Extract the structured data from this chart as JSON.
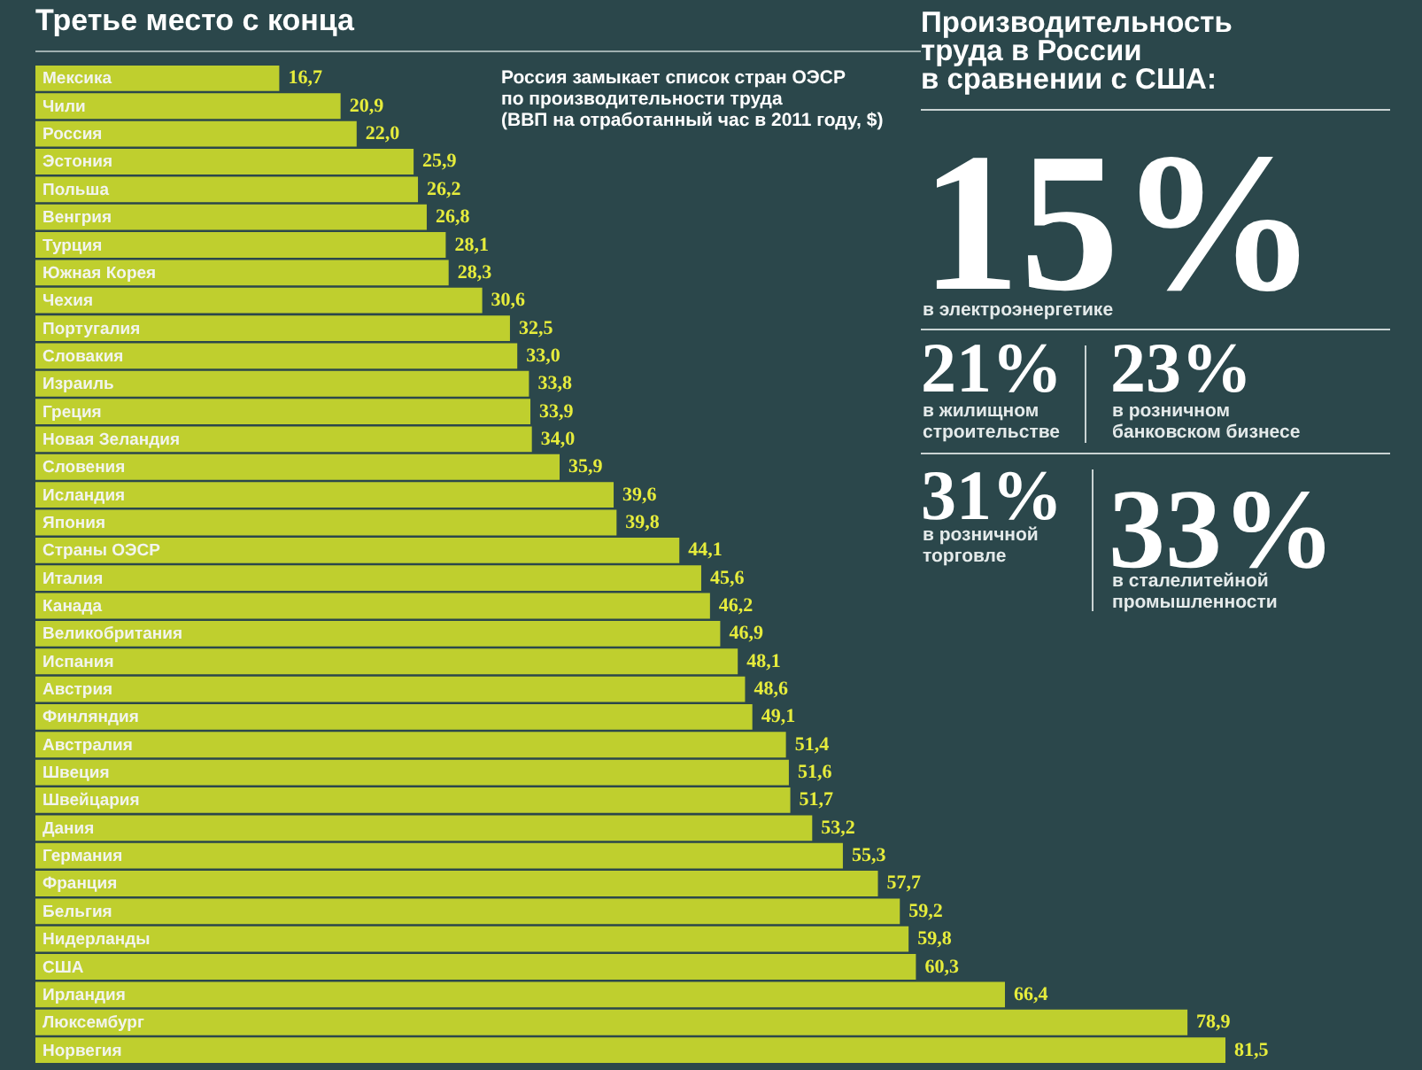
{
  "chart_data": [
    {
      "type": "bar",
      "orientation": "horizontal",
      "title": "Третье место с конца",
      "subtitle": "Россия замыкает список стран ОЭСР\nпо производительности труда\n(ВВП на отработанный час в 2011 году, $)",
      "categories": [
        "Мексика",
        "Чили",
        "Россия",
        "Эстония",
        "Польша",
        "Венгрия",
        "Турция",
        "Южная Корея",
        "Чехия",
        "Португалия",
        "Словакия",
        "Израиль",
        "Греция",
        "Новая Зеландия",
        "Словения",
        "Исландия",
        "Япония",
        "Страны ОЭСР",
        "Италия",
        "Канада",
        "Великобритания",
        "Испания",
        "Австрия",
        "Финляндия",
        "Австралия",
        "Швеция",
        "Швейцария",
        "Дания",
        "Германия",
        "Франция",
        "Бельгия",
        "Нидерланды",
        "США",
        "Ирландия",
        "Люксембург",
        "Норвегия"
      ],
      "series": [
        {
          "color": "#bfcf2e",
          "values": [
            16.7,
            20.9,
            22.0,
            25.9,
            26.2,
            26.8,
            28.1,
            28.3,
            30.6,
            32.5,
            33.0,
            33.8,
            33.9,
            34.0,
            35.9,
            39.6,
            39.8,
            44.1,
            45.6,
            46.2,
            46.9,
            48.1,
            48.6,
            49.1,
            51.4,
            51.6,
            51.7,
            53.2,
            55.3,
            57.7,
            59.2,
            59.8,
            60.3,
            66.4,
            78.9,
            81.5
          ],
          "value_labels": [
            "16,7",
            "20,9",
            "22,0",
            "25,9",
            "26,2",
            "26,8",
            "28,1",
            "28,3",
            "30,6",
            "32,5",
            "33,0",
            "33,8",
            "33,9",
            "34,0",
            "35,9",
            "39,6",
            "39,8",
            "44,1",
            "45,6",
            "46,2",
            "46,9",
            "48,1",
            "48,6",
            "49,1",
            "51,4",
            "51,6",
            "51,7",
            "53,2",
            "55,3",
            "57,7",
            "59,2",
            "59,8",
            "60,3",
            "66,4",
            "78,9",
            "81,5"
          ]
        }
      ],
      "data_labels": false
    },
    {
      "type": "other",
      "title": "Производительность\nтруда в России\nв сравнении с США:",
      "annotations": [
        "15%",
        "в электроэнергетике",
        "21%",
        "в жилищном\nстроительстве",
        "23%",
        "в розничном\nбанковском бизнесе",
        "31%",
        "в розничной\nторговле",
        "33%",
        "в сталелитейной\nпромышленности"
      ]
    }
  ]
}
